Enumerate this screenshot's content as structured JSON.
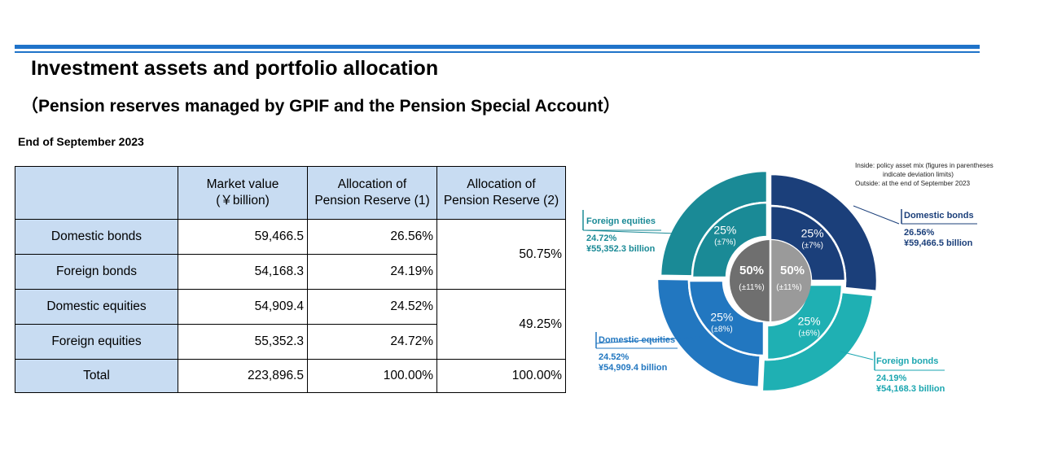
{
  "title": "Investment assets and portfolio allocation",
  "subtitle": "（Pension reserves managed by GPIF and the Pension Special Account）",
  "as_of": "End of September 2023",
  "table": {
    "headers": {
      "market_value": "Market value",
      "market_value_unit": "(￥billion)",
      "alloc1_line1": "Allocation of",
      "alloc1_line2": "Pension Reserve (1)",
      "alloc2_line1": "Allocation of",
      "alloc2_line2": "Pension Reserve (2)"
    },
    "rows": [
      {
        "label": "Domestic bonds",
        "value": "59,466.5",
        "alloc1": "26.56%"
      },
      {
        "label": "Foreign bonds",
        "value": "54,168.3",
        "alloc1": "24.19%"
      },
      {
        "label": "Domestic equities",
        "value": "54,909.4",
        "alloc1": "24.52%"
      },
      {
        "label": "Foreign equities",
        "value": "55,352.3",
        "alloc1": "24.72%"
      }
    ],
    "bonds_alloc2": "50.75%",
    "equities_alloc2": "49.25%",
    "total": {
      "label": "Total",
      "value": "223,896.5",
      "alloc1": "100.00%",
      "alloc2": "100.00%"
    }
  },
  "chart_data": {
    "type": "pie",
    "note_line1": "Inside:  policy asset mix (figures in parentheses",
    "note_line2": "indicate deviation limits)",
    "note_line3": "Outside: at the end of September 2023",
    "outer": [
      {
        "name": "Domestic bonds",
        "pct": "26.56%",
        "amount": "¥59,466.5 billion",
        "value": 26.56,
        "color": "#1b3f7a"
      },
      {
        "name": "Foreign bonds",
        "pct": "24.19%",
        "amount": "¥54,168.3 billion",
        "value": 24.19,
        "color": "#1fb0b3"
      },
      {
        "name": "Domestic equities",
        "pct": "24.52%",
        "amount": "¥54,909.4 billion",
        "value": 24.52,
        "color": "#2277c0"
      },
      {
        "name": "Foreign equities",
        "pct": "24.72%",
        "amount": "¥55,352.3 billion",
        "value": 24.72,
        "color": "#1a8a96"
      }
    ],
    "inner": [
      {
        "pct": "25%",
        "limit": "(±7%)",
        "value": 25,
        "color": "#1b3f7a"
      },
      {
        "pct": "25%",
        "limit": "(±6%)",
        "value": 25,
        "color": "#1fb0b3"
      },
      {
        "pct": "25%",
        "limit": "(±8%)",
        "value": 25,
        "color": "#2277c0"
      },
      {
        "pct": "25%",
        "limit": "(±7%)",
        "value": 25,
        "color": "#1a8a96"
      }
    ],
    "core": [
      {
        "pct": "50%",
        "limit": "(±11%)",
        "color": "#9a9a9a"
      },
      {
        "pct": "50%",
        "limit": "(±11%)",
        "color": "#6f6f6f"
      }
    ]
  }
}
